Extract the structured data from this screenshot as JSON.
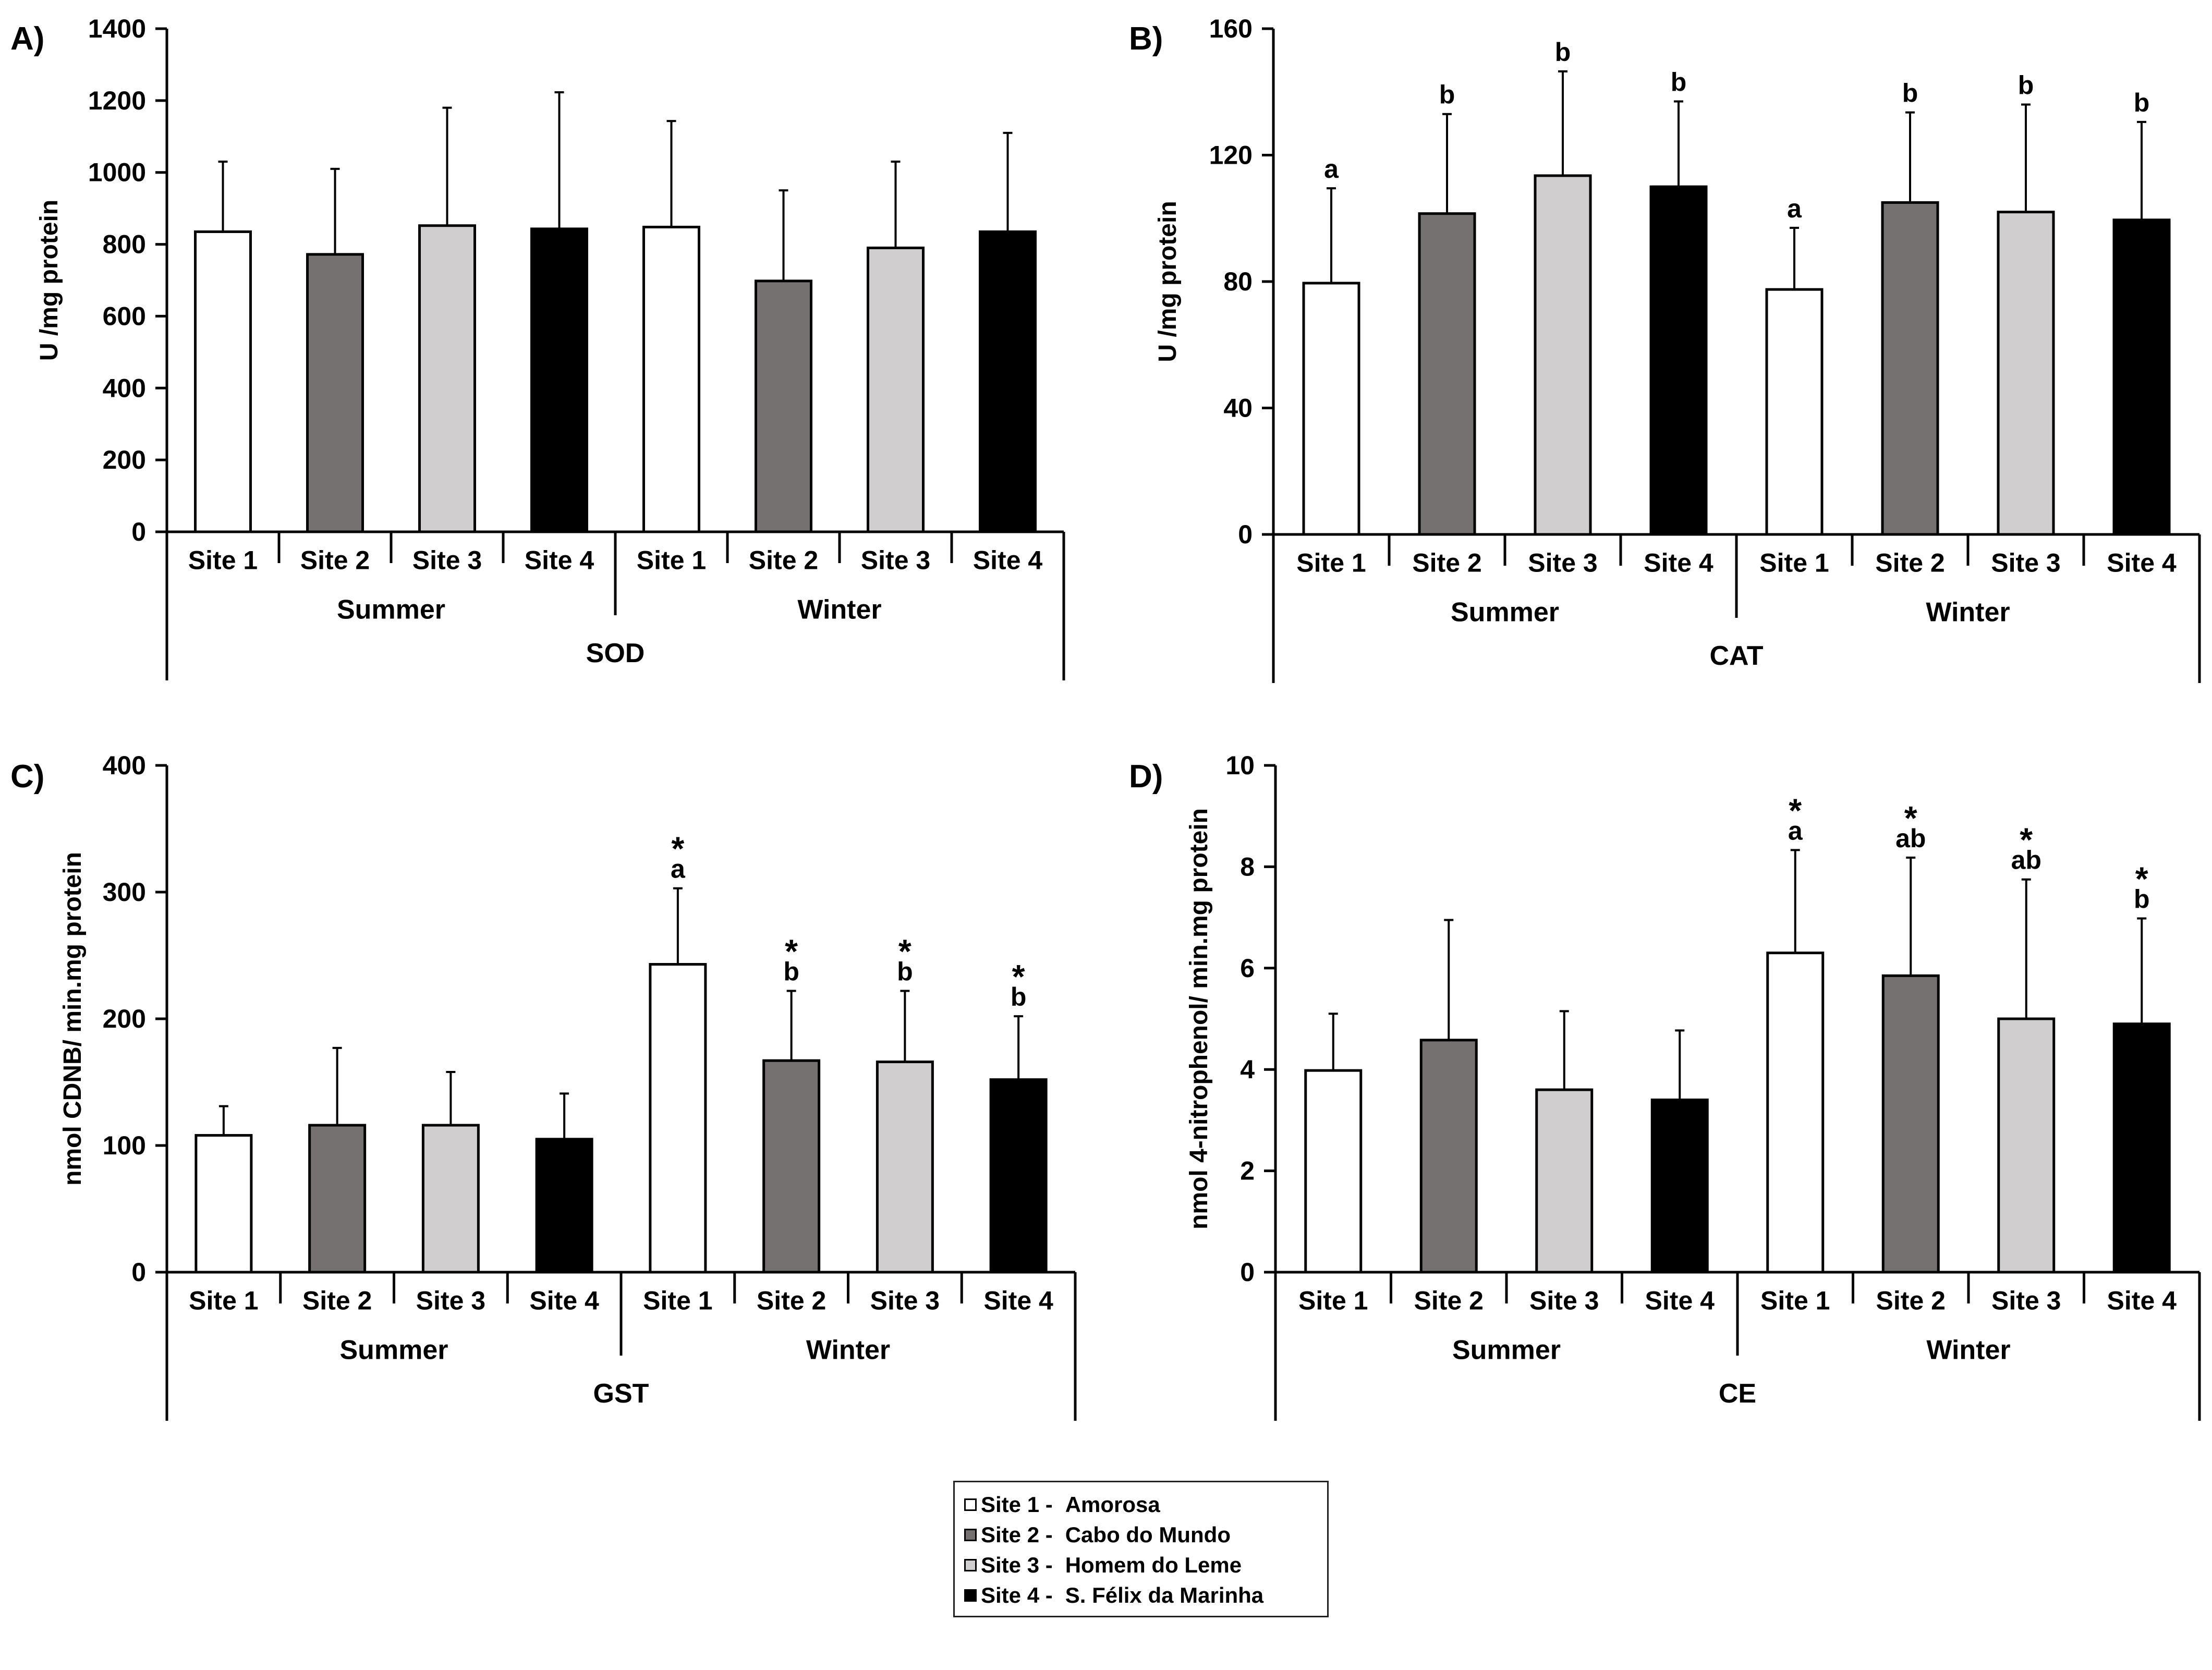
{
  "colors": {
    "site1": "#ffffff",
    "site2": "#767171",
    "site3": "#d0cece",
    "site4": "#000000"
  },
  "x_labels": [
    "Site 1",
    "Site 2",
    "Site 3",
    "Site 4",
    "Site 1",
    "Site 2",
    "Site 3",
    "Site 4"
  ],
  "season_labels": [
    "Summer",
    "Winter"
  ],
  "legend": {
    "items": [
      {
        "site": "Site 1 -",
        "name": "Amorosa",
        "color_key": "site1"
      },
      {
        "site": "Site 2 -",
        "name": "Cabo do Mundo",
        "color_key": "site2"
      },
      {
        "site": "Site 3 -",
        "name": "Homem do Leme",
        "color_key": "site3"
      },
      {
        "site": "Site 4 -",
        "name": "S. Félix da Marinha",
        "color_key": "site4"
      }
    ]
  },
  "chart_data": [
    {
      "panel": "A)",
      "type": "bar",
      "title": "SOD",
      "ylabel": "U /mg protein",
      "ylim": [
        0,
        1400
      ],
      "yticks": [
        0,
        200,
        400,
        600,
        800,
        1000,
        1200,
        1400
      ],
      "values": [
        835,
        772,
        852,
        843,
        848,
        698,
        790,
        835
      ],
      "errors": [
        195,
        238,
        328,
        380,
        295,
        252,
        240,
        275
      ],
      "letters": [
        "",
        "",
        "",
        "",
        "",
        "",
        "",
        ""
      ],
      "stars": [
        false,
        false,
        false,
        false,
        false,
        false,
        false,
        false
      ]
    },
    {
      "panel": "B)",
      "type": "bar",
      "title": "CAT",
      "ylabel": "U /mg protein",
      "ylim": [
        0,
        160
      ],
      "yticks": [
        0,
        40,
        80,
        120,
        160
      ],
      "values": [
        79.5,
        101.5,
        113.5,
        110,
        77.5,
        105,
        102,
        99.5
      ],
      "errors": [
        30,
        31.5,
        33,
        27,
        19.5,
        28.5,
        34,
        31
      ],
      "letters": [
        "a",
        "b",
        "b",
        "b",
        "a",
        "b",
        "b",
        "b"
      ],
      "stars": [
        false,
        false,
        false,
        false,
        false,
        false,
        false,
        false
      ]
    },
    {
      "panel": "C)",
      "type": "bar",
      "title": "GST",
      "ylabel": "nmol CDNB/ min.mg protein",
      "ylim": [
        0,
        400
      ],
      "yticks": [
        0,
        100,
        200,
        300,
        400
      ],
      "values": [
        108,
        116,
        116,
        105,
        243,
        167,
        166,
        152
      ],
      "errors": [
        23,
        61,
        42,
        36,
        60,
        55,
        56,
        50
      ],
      "letters": [
        "",
        "",
        "",
        "",
        "a",
        "b",
        "b",
        "b"
      ],
      "stars": [
        false,
        false,
        false,
        false,
        true,
        true,
        true,
        true
      ]
    },
    {
      "panel": "D)",
      "type": "bar",
      "title": "CE",
      "ylabel": "nmol 4-nitrophenol/ min.mg protein",
      "ylim": [
        0,
        10
      ],
      "yticks": [
        0,
        2,
        4,
        6,
        8,
        10
      ],
      "values": [
        3.98,
        4.58,
        3.6,
        3.4,
        6.3,
        5.85,
        5.0,
        4.9
      ],
      "errors": [
        1.12,
        2.37,
        1.55,
        1.37,
        2.03,
        2.33,
        2.75,
        2.08
      ],
      "letters": [
        "",
        "",
        "",
        "",
        "a",
        "ab",
        "ab",
        "b"
      ],
      "stars": [
        false,
        false,
        false,
        false,
        true,
        true,
        true,
        true
      ]
    }
  ]
}
